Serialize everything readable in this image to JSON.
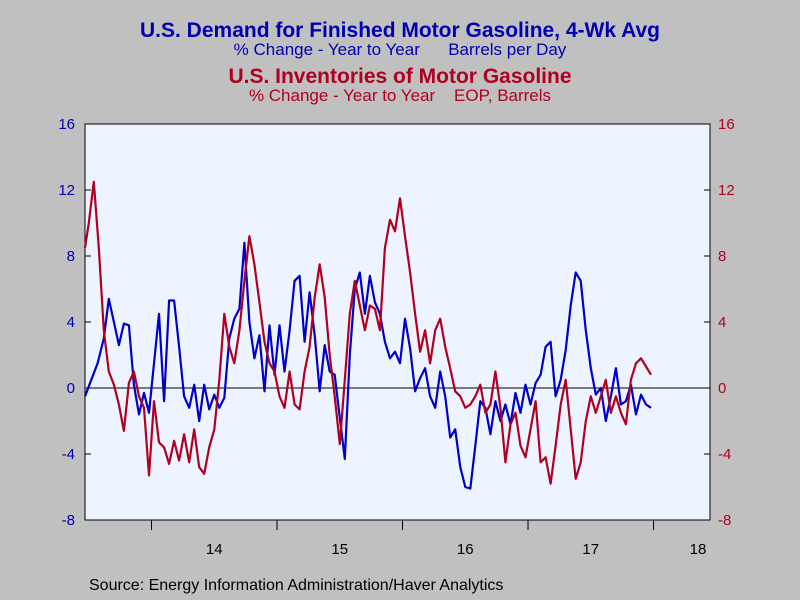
{
  "titles": {
    "demand_title": "U.S. Demand for Finished Motor Gasoline, 4-Wk Avg",
    "demand_subtitle": "% Change - Year to Year      Barrels per Day",
    "inventory_title": "U.S. Inventories of Motor Gasoline",
    "inventory_subtitle": "% Change - Year to Year    EOP, Barrels"
  },
  "source": "Source:  Energy Information Administration/Haver Analytics",
  "colors": {
    "demand": "#0000c8",
    "inventory": "#b00020",
    "plot_bg": "#eef4ff",
    "page_bg": "#c0c0c0"
  },
  "chart_data": {
    "type": "line",
    "x_start": 2013.47,
    "x_end": 2018.45,
    "x_ticks": [
      "14",
      "15",
      "16",
      "17",
      "18"
    ],
    "y_left": {
      "ylim": [
        -8,
        16
      ],
      "ticks": [
        "16",
        "12",
        "8",
        "4",
        "0",
        "-4",
        "-8"
      ]
    },
    "y_right": {
      "ylim": [
        -8,
        16
      ],
      "ticks": [
        "16",
        "12",
        "8",
        "4",
        "0",
        "-4",
        "-8"
      ]
    },
    "zero_line": true,
    "series": [
      {
        "name": "U.S. Demand for Finished Motor Gasoline, 4-Wk Avg",
        "axis": "left",
        "points": [
          [
            2013.47,
            -0.5
          ],
          [
            2013.52,
            0.5
          ],
          [
            2013.57,
            1.5
          ],
          [
            2013.62,
            3.0
          ],
          [
            2013.66,
            5.4
          ],
          [
            2013.7,
            4.0
          ],
          [
            2013.74,
            2.6
          ],
          [
            2013.78,
            3.9
          ],
          [
            2013.82,
            3.8
          ],
          [
            2013.86,
            0.2
          ],
          [
            2013.9,
            -1.6
          ],
          [
            2013.94,
            -0.3
          ],
          [
            2013.98,
            -1.5
          ],
          [
            2014.02,
            1.5
          ],
          [
            2014.06,
            4.5
          ],
          [
            2014.1,
            -0.8
          ],
          [
            2014.14,
            5.3
          ],
          [
            2014.18,
            5.3
          ],
          [
            2014.22,
            2.5
          ],
          [
            2014.26,
            -0.5
          ],
          [
            2014.3,
            -1.2
          ],
          [
            2014.34,
            0.2
          ],
          [
            2014.38,
            -2.0
          ],
          [
            2014.42,
            0.2
          ],
          [
            2014.46,
            -1.3
          ],
          [
            2014.5,
            -0.4
          ],
          [
            2014.54,
            -1.2
          ],
          [
            2014.58,
            -0.6
          ],
          [
            2014.62,
            3.0
          ],
          [
            2014.66,
            4.2
          ],
          [
            2014.7,
            4.8
          ],
          [
            2014.74,
            8.8
          ],
          [
            2014.78,
            4.0
          ],
          [
            2014.82,
            1.8
          ],
          [
            2014.86,
            3.2
          ],
          [
            2014.9,
            -0.2
          ],
          [
            2014.94,
            3.8
          ],
          [
            2014.98,
            0.8
          ],
          [
            2015.02,
            3.8
          ],
          [
            2015.06,
            1.0
          ],
          [
            2015.1,
            3.5
          ],
          [
            2015.14,
            6.5
          ],
          [
            2015.18,
            6.8
          ],
          [
            2015.22,
            2.8
          ],
          [
            2015.26,
            5.8
          ],
          [
            2015.3,
            3.2
          ],
          [
            2015.34,
            -0.2
          ],
          [
            2015.38,
            2.6
          ],
          [
            2015.42,
            1.0
          ],
          [
            2015.46,
            0.8
          ],
          [
            2015.5,
            -1.8
          ],
          [
            2015.54,
            -4.3
          ],
          [
            2015.58,
            2.0
          ],
          [
            2015.62,
            6.0
          ],
          [
            2015.66,
            7.0
          ],
          [
            2015.7,
            4.5
          ],
          [
            2015.74,
            6.8
          ],
          [
            2015.78,
            5.2
          ],
          [
            2015.82,
            4.5
          ],
          [
            2015.86,
            2.8
          ],
          [
            2015.9,
            1.8
          ],
          [
            2015.94,
            2.2
          ],
          [
            2015.98,
            1.5
          ],
          [
            2016.02,
            4.2
          ],
          [
            2016.06,
            2.4
          ],
          [
            2016.1,
            -0.2
          ],
          [
            2016.14,
            0.6
          ],
          [
            2016.18,
            1.2
          ],
          [
            2016.22,
            -0.5
          ],
          [
            2016.26,
            -1.2
          ],
          [
            2016.3,
            1.0
          ],
          [
            2016.34,
            -0.5
          ],
          [
            2016.38,
            -3.0
          ],
          [
            2016.42,
            -2.5
          ],
          [
            2016.46,
            -4.8
          ],
          [
            2016.5,
            -6.0
          ],
          [
            2016.54,
            -6.1
          ],
          [
            2016.58,
            -3.5
          ],
          [
            2016.62,
            -0.8
          ],
          [
            2016.66,
            -1.2
          ],
          [
            2016.7,
            -2.8
          ],
          [
            2016.74,
            -0.8
          ],
          [
            2016.78,
            -2.0
          ],
          [
            2016.82,
            -1.0
          ],
          [
            2016.86,
            -2.2
          ],
          [
            2016.9,
            -0.3
          ],
          [
            2016.94,
            -1.5
          ],
          [
            2016.98,
            0.2
          ],
          [
            2017.02,
            -1.0
          ],
          [
            2017.06,
            0.3
          ],
          [
            2017.1,
            0.8
          ],
          [
            2017.14,
            2.5
          ],
          [
            2017.18,
            2.8
          ],
          [
            2017.22,
            -0.5
          ],
          [
            2017.26,
            0.5
          ],
          [
            2017.3,
            2.3
          ],
          [
            2017.34,
            5.0
          ],
          [
            2017.38,
            7.0
          ],
          [
            2017.42,
            6.5
          ],
          [
            2017.46,
            3.5
          ],
          [
            2017.5,
            1.2
          ],
          [
            2017.54,
            -0.4
          ],
          [
            2017.58,
            0.0
          ],
          [
            2017.62,
            -2.0
          ],
          [
            2017.66,
            -0.5
          ],
          [
            2017.7,
            1.2
          ],
          [
            2017.74,
            -1.0
          ],
          [
            2017.78,
            -0.8
          ],
          [
            2017.82,
            0.2
          ],
          [
            2017.86,
            -1.6
          ],
          [
            2017.9,
            -0.4
          ],
          [
            2017.94,
            -1.0
          ],
          [
            2017.98,
            -1.2
          ]
        ]
      },
      {
        "name": "U.S. Inventories of Motor Gasoline",
        "axis": "right",
        "points": [
          [
            2013.47,
            8.5
          ],
          [
            2013.5,
            10.0
          ],
          [
            2013.54,
            12.5
          ],
          [
            2013.58,
            8.5
          ],
          [
            2013.62,
            3.5
          ],
          [
            2013.66,
            1.0
          ],
          [
            2013.7,
            0.2
          ],
          [
            2013.74,
            -1.0
          ],
          [
            2013.78,
            -2.6
          ],
          [
            2013.82,
            0.3
          ],
          [
            2013.86,
            1.0
          ],
          [
            2013.9,
            -0.5
          ],
          [
            2013.94,
            -1.2
          ],
          [
            2013.98,
            -5.3
          ],
          [
            2014.02,
            -0.8
          ],
          [
            2014.06,
            -3.3
          ],
          [
            2014.1,
            -3.6
          ],
          [
            2014.14,
            -4.6
          ],
          [
            2014.18,
            -3.2
          ],
          [
            2014.22,
            -4.4
          ],
          [
            2014.26,
            -2.8
          ],
          [
            2014.3,
            -4.5
          ],
          [
            2014.34,
            -2.5
          ],
          [
            2014.38,
            -4.8
          ],
          [
            2014.42,
            -5.2
          ],
          [
            2014.46,
            -3.6
          ],
          [
            2014.5,
            -2.5
          ],
          [
            2014.54,
            0.5
          ],
          [
            2014.58,
            4.5
          ],
          [
            2014.62,
            2.5
          ],
          [
            2014.66,
            1.5
          ],
          [
            2014.7,
            3.5
          ],
          [
            2014.74,
            6.5
          ],
          [
            2014.78,
            9.2
          ],
          [
            2014.82,
            7.5
          ],
          [
            2014.86,
            5.2
          ],
          [
            2014.9,
            2.8
          ],
          [
            2014.94,
            1.5
          ],
          [
            2014.98,
            1.0
          ],
          [
            2015.02,
            -0.5
          ],
          [
            2015.06,
            -1.2
          ],
          [
            2015.1,
            1.0
          ],
          [
            2015.14,
            -1.0
          ],
          [
            2015.18,
            -1.3
          ],
          [
            2015.22,
            1.0
          ],
          [
            2015.26,
            2.5
          ],
          [
            2015.3,
            5.5
          ],
          [
            2015.34,
            7.5
          ],
          [
            2015.38,
            5.5
          ],
          [
            2015.42,
            2.0
          ],
          [
            2015.46,
            -0.5
          ],
          [
            2015.5,
            -3.4
          ],
          [
            2015.54,
            0.5
          ],
          [
            2015.58,
            4.5
          ],
          [
            2015.62,
            6.5
          ],
          [
            2015.66,
            5.0
          ],
          [
            2015.7,
            3.5
          ],
          [
            2015.74,
            5.0
          ],
          [
            2015.78,
            4.8
          ],
          [
            2015.82,
            3.5
          ],
          [
            2015.86,
            8.5
          ],
          [
            2015.9,
            10.2
          ],
          [
            2015.94,
            9.5
          ],
          [
            2015.98,
            11.5
          ],
          [
            2016.02,
            9.2
          ],
          [
            2016.06,
            7.0
          ],
          [
            2016.1,
            4.5
          ],
          [
            2016.14,
            2.2
          ],
          [
            2016.18,
            3.5
          ],
          [
            2016.22,
            1.5
          ],
          [
            2016.26,
            3.5
          ],
          [
            2016.3,
            4.2
          ],
          [
            2016.34,
            2.5
          ],
          [
            2016.38,
            1.2
          ],
          [
            2016.42,
            -0.2
          ],
          [
            2016.46,
            -0.5
          ],
          [
            2016.5,
            -1.2
          ],
          [
            2016.54,
            -1.0
          ],
          [
            2016.58,
            -0.5
          ],
          [
            2016.62,
            0.2
          ],
          [
            2016.66,
            -1.5
          ],
          [
            2016.7,
            -1.0
          ],
          [
            2016.74,
            1.0
          ],
          [
            2016.78,
            -1.2
          ],
          [
            2016.82,
            -4.5
          ],
          [
            2016.86,
            -2.2
          ],
          [
            2016.9,
            -1.5
          ],
          [
            2016.94,
            -3.5
          ],
          [
            2016.98,
            -4.2
          ],
          [
            2017.02,
            -2.5
          ],
          [
            2017.06,
            -0.8
          ],
          [
            2017.1,
            -4.5
          ],
          [
            2017.14,
            -4.2
          ],
          [
            2017.18,
            -5.8
          ],
          [
            2017.22,
            -3.5
          ],
          [
            2017.26,
            -1.0
          ],
          [
            2017.3,
            0.5
          ],
          [
            2017.34,
            -2.5
          ],
          [
            2017.38,
            -5.5
          ],
          [
            2017.42,
            -4.5
          ],
          [
            2017.46,
            -2.0
          ],
          [
            2017.5,
            -0.5
          ],
          [
            2017.54,
            -1.5
          ],
          [
            2017.58,
            -0.5
          ],
          [
            2017.62,
            0.5
          ],
          [
            2017.66,
            -1.5
          ],
          [
            2017.7,
            -0.5
          ],
          [
            2017.74,
            -1.5
          ],
          [
            2017.78,
            -2.2
          ],
          [
            2017.82,
            0.5
          ],
          [
            2017.86,
            1.5
          ],
          [
            2017.9,
            1.8
          ],
          [
            2017.94,
            1.3
          ],
          [
            2017.98,
            0.8
          ]
        ]
      }
    ]
  }
}
